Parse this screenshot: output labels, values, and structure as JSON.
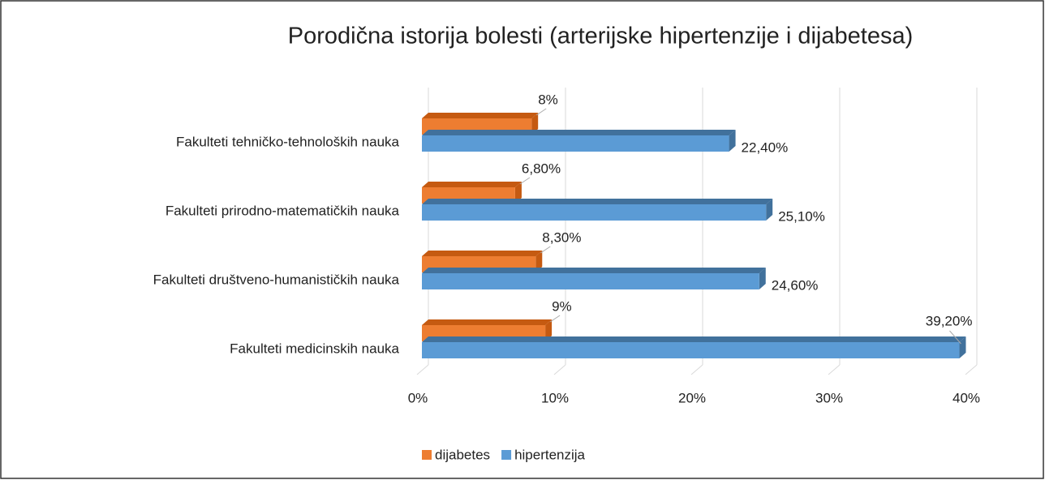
{
  "chart_data": {
    "type": "bar3d_horizontal",
    "title": "Porodična istorija bolesti (arterijske hipertenzije i dijabetesa)",
    "categories": [
      "Fakulteti tehničko-tehnoloških nauka",
      "Fakulteti prirodno-matematičkih nauka",
      "Fakulteti društveno-humanističkih nauka",
      "Fakulteti medicinskih nauka"
    ],
    "series": [
      {
        "name": "dijabetes",
        "color": "#ED7D31",
        "values": [
          8,
          6.8,
          8.3,
          9
        ],
        "value_labels": [
          "8%",
          "6,80%",
          "8,30%",
          "9%"
        ]
      },
      {
        "name": "hipertenzija",
        "color": "#5B9BD5",
        "values": [
          22.4,
          25.1,
          24.6,
          39.2
        ],
        "value_labels": [
          "22,40%",
          "25,10%",
          "24,60%",
          "39,20%"
        ]
      }
    ],
    "xlim": [
      0,
      40
    ],
    "xticks": [
      {
        "value": 0,
        "label": "0%"
      },
      {
        "value": 10,
        "label": "10%"
      },
      {
        "value": 20,
        "label": "20%"
      },
      {
        "value": 30,
        "label": "30%"
      },
      {
        "value": 40,
        "label": "40%"
      }
    ],
    "grid": true,
    "legend": "bottom"
  }
}
